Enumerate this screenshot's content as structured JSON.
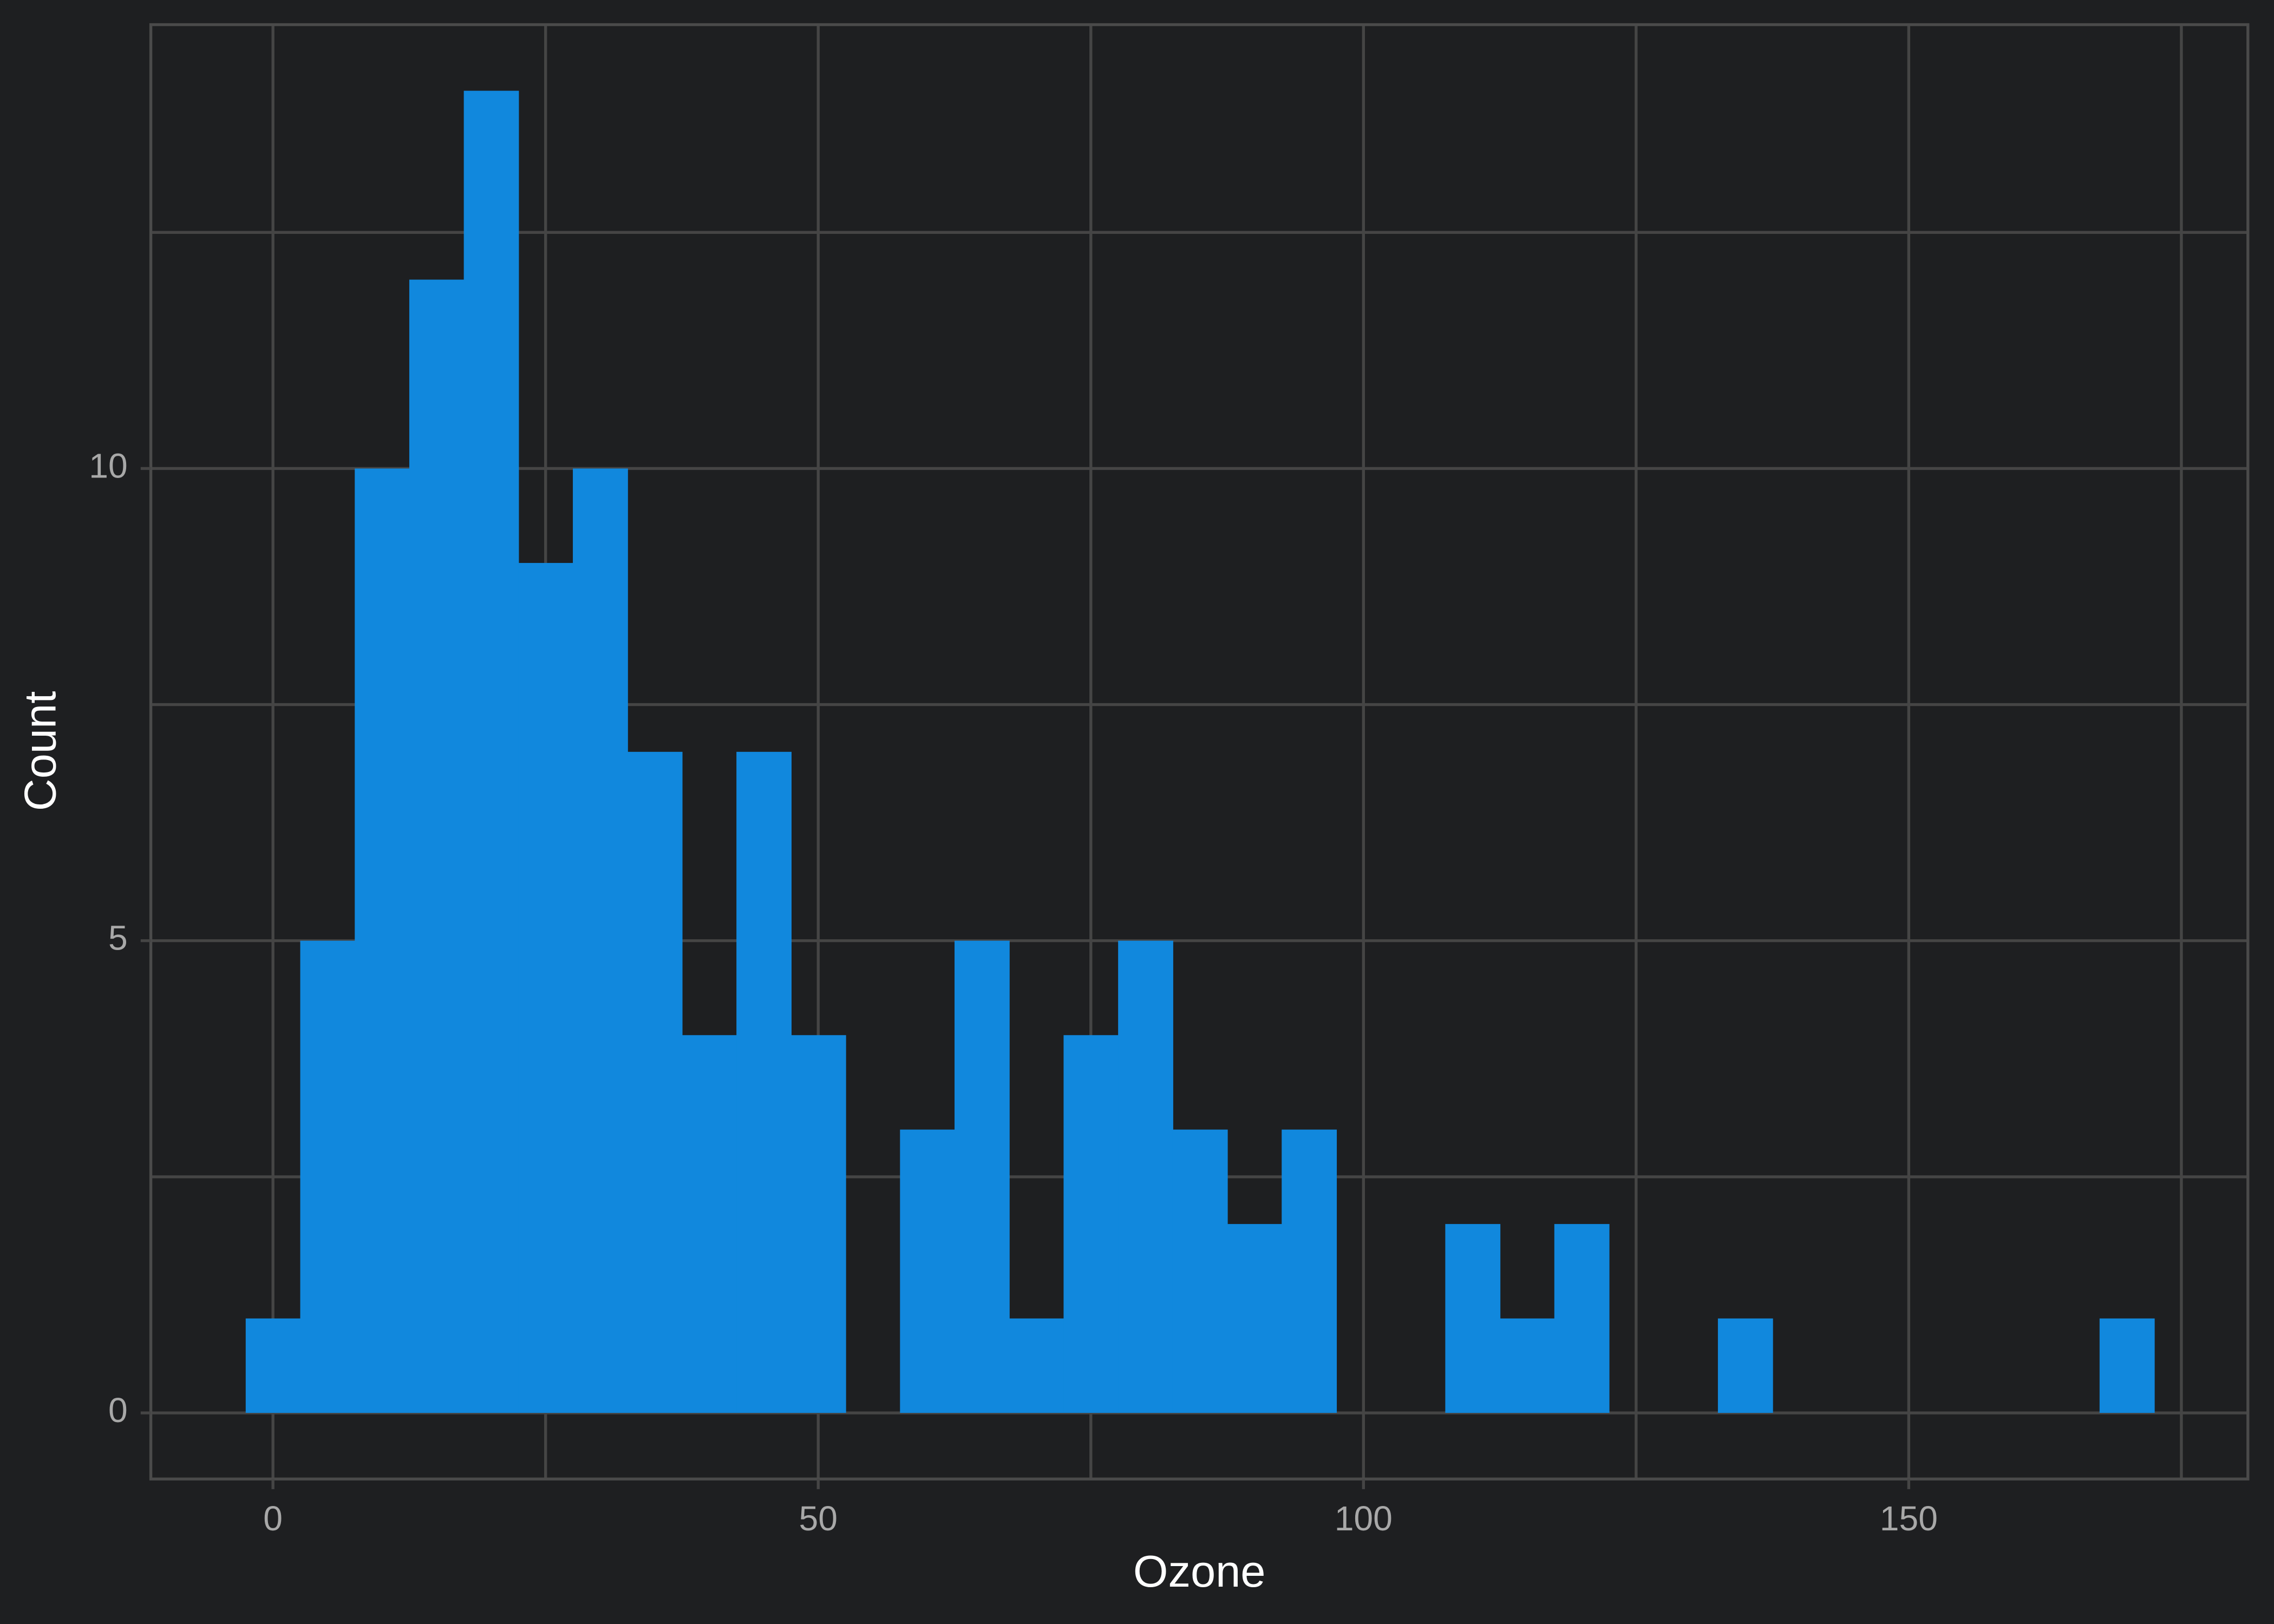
{
  "chart_data": {
    "type": "histogram",
    "x_label": "Ozone",
    "y_label": "Count",
    "bins": [
      -2.5,
      2.5,
      7.5,
      12.5,
      17.5,
      22.5,
      27.5,
      32.5,
      37.5,
      42.5,
      47.5,
      52.5,
      57.5,
      62.5,
      67.5,
      72.5,
      77.5,
      82.5,
      87.5,
      92.5,
      97.5,
      102.5,
      107.5,
      112.5,
      117.5,
      122.5,
      127.5,
      132.5,
      137.5,
      142.5,
      147.5,
      152.5,
      157.5,
      162.5,
      167.5,
      172.5
    ],
    "values": [
      1,
      5,
      10,
      12,
      14,
      9,
      10,
      7,
      4,
      7,
      4,
      0,
      3,
      5,
      1,
      4,
      5,
      3,
      2,
      3,
      0,
      0,
      2,
      1,
      2,
      0,
      0,
      1,
      0,
      0,
      0,
      0,
      0,
      0,
      1
    ],
    "color": "#1188dd",
    "xlim": [
      -11.2,
      181.1
    ],
    "xticks": [
      0,
      50,
      100,
      150
    ],
    "x_minor_ticks": [
      25,
      75,
      125,
      175
    ],
    "ylim": [
      -0.7,
      14.7
    ],
    "yticks": [
      0,
      5,
      10
    ],
    "y_minor_ticks": [
      2.5,
      7.5,
      12.5
    ],
    "grid": true
  }
}
